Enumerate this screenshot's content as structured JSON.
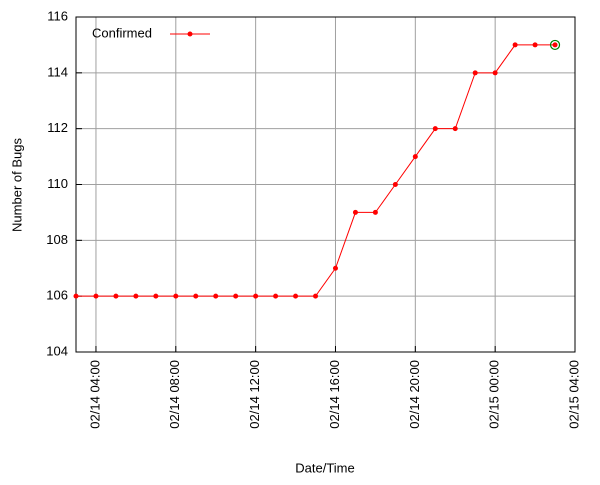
{
  "chart_data": {
    "type": "line",
    "x_label": "Date/Time",
    "y_label": "Number of Bugs",
    "x": [
      "02/14 03:00",
      "02/14 04:00",
      "02/14 05:00",
      "02/14 06:00",
      "02/14 07:00",
      "02/14 08:00",
      "02/14 09:00",
      "02/14 10:00",
      "02/14 11:00",
      "02/14 12:00",
      "02/14 13:00",
      "02/14 14:00",
      "02/14 15:00",
      "02/14 16:00",
      "02/14 17:00",
      "02/14 18:00",
      "02/14 19:00",
      "02/14 20:00",
      "02/14 21:00",
      "02/14 22:00",
      "02/14 23:00",
      "02/15 00:00",
      "02/15 01:00",
      "02/15 02:00",
      "02/15 03:00"
    ],
    "series": [
      {
        "name": "Confirmed",
        "color": "#ff0000",
        "values": [
          106,
          106,
          106,
          106,
          106,
          106,
          106,
          106,
          106,
          106,
          106,
          106,
          106,
          107,
          109,
          109,
          110,
          111,
          112,
          112,
          114,
          114,
          115,
          115,
          115
        ]
      }
    ],
    "xlim": [
      "02/14 03:00",
      "02/15 04:00"
    ],
    "xticks": [
      "02/14 04:00",
      "02/14 08:00",
      "02/14 12:00",
      "02/14 16:00",
      "02/14 20:00",
      "02/15 00:00",
      "02/15 04:00"
    ],
    "ylim": [
      104,
      116
    ],
    "yticks": [
      104,
      106,
      108,
      110,
      112,
      114,
      116
    ],
    "grid": true,
    "legend": "upper-left"
  }
}
